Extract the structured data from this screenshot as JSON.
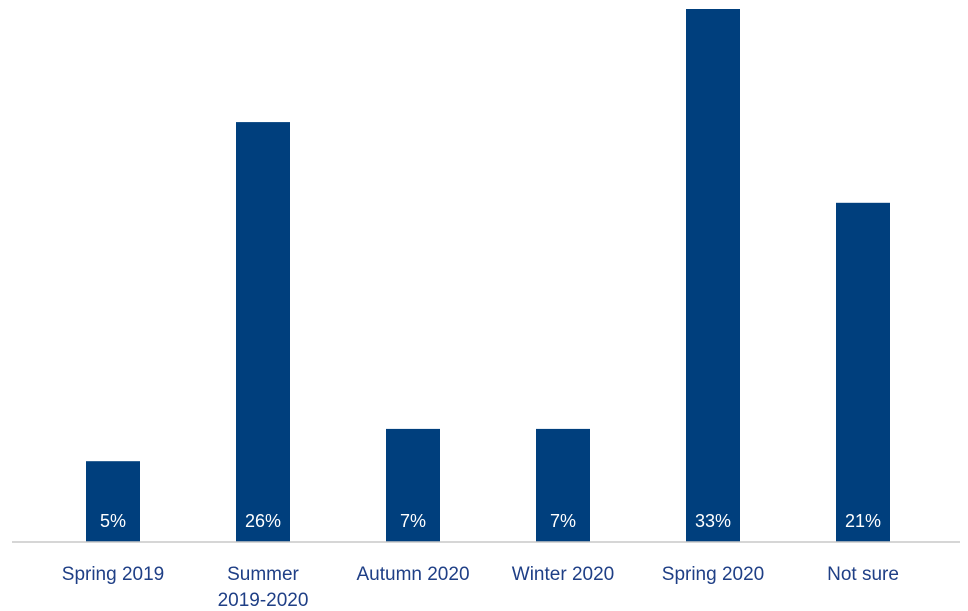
{
  "colors": {
    "bar": "#003f7d",
    "bar_label": "#ffffff",
    "category_label": "#1f3f86",
    "axis": "#c8c8c8",
    "background": "#ffffff"
  },
  "chart_data": {
    "type": "bar",
    "title": "",
    "xlabel": "",
    "ylabel": "",
    "ylim": [
      0,
      33
    ],
    "grid": false,
    "categories": [
      [
        "Spring 2019"
      ],
      [
        "Summer",
        "2019-2020"
      ],
      [
        "Autumn 2020"
      ],
      [
        "Winter 2020"
      ],
      [
        "Spring 2020"
      ],
      [
        "Not sure"
      ]
    ],
    "values": [
      5,
      26,
      7,
      7,
      33,
      21
    ],
    "data_labels": [
      "5%",
      "26%",
      "7%",
      "7%",
      "33%",
      "21%"
    ]
  }
}
